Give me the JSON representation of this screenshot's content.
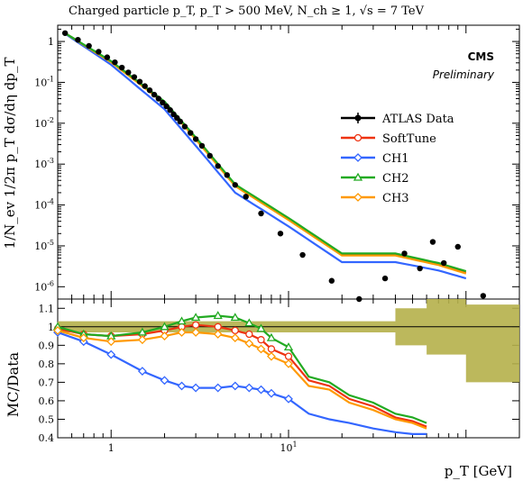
{
  "title": "Charged particle p_T, p_T > 500 MeV, N_ch ≥ 1, √s = 7 TeV",
  "experiment": "CMS",
  "experiment_note": "Preliminary",
  "top_ylabel": "1/N_ev 1/2π p_T dσ/dη dp_T",
  "bottom_ylabel": "MC/Data",
  "xlabel": "p_T  [GeV]",
  "colors": {
    "data": "#000000",
    "SoftTune": "#ee3311",
    "CH1": "#3366ff",
    "CH2": "#22aa22",
    "CH3": "#ff9900",
    "band": "#b5b04a"
  },
  "chart_data": [
    {
      "type": "line",
      "panel": "top",
      "log_x": true,
      "log_y": true,
      "xlim": [
        0.5,
        200
      ],
      "ylim": [
        5e-07,
        2.5
      ],
      "x_ticks": [
        "1",
        "10^1"
      ],
      "y_ticks": [
        "1",
        "10^-1",
        "10^-2",
        "10^-3",
        "10^-4",
        "10^-5",
        "10^-6"
      ],
      "legend_position": "right-middle",
      "series": [
        {
          "name": "ATLAS Data",
          "style": "points",
          "x": [
            0.55,
            0.65,
            0.75,
            0.85,
            0.95,
            1.05,
            1.15,
            1.25,
            1.35,
            1.45,
            1.55,
            1.65,
            1.75,
            1.85,
            1.95,
            2.05,
            2.15,
            2.25,
            2.35,
            2.45,
            2.6,
            2.8,
            3.0,
            3.25,
            3.6,
            4.0,
            4.5,
            5.0,
            5.75,
            7.0,
            9.0,
            12.0,
            17.5,
            25.0,
            35.0,
            45.0,
            55.0,
            65.0,
            75.0,
            90.0,
            125.0
          ],
          "y": [
            1.6,
            1.1,
            0.78,
            0.56,
            0.41,
            0.31,
            0.23,
            0.175,
            0.135,
            0.104,
            0.081,
            0.064,
            0.05,
            0.04,
            0.032,
            0.026,
            0.021,
            0.0165,
            0.0135,
            0.011,
            0.0083,
            0.0058,
            0.0041,
            0.0028,
            0.0016,
            0.0009,
            0.00054,
            0.00031,
            0.00016,
            6.2e-05,
            2e-05,
            6e-06,
            1.4e-06,
            5e-07,
            1.6e-06,
            6.5e-06,
            2.8e-06,
            1.25e-05,
            3.8e-06,
            9.5e-06,
            6e-07
          ]
        },
        {
          "name": "SoftTune",
          "x": [
            0.55,
            1.0,
            2.0,
            3.0,
            5.0,
            10.0,
            20.0,
            40.0,
            70.0,
            100.0
          ],
          "y": [
            1.6,
            0.32,
            0.032,
            0.0042,
            0.0003,
            4.5e-05,
            6e-06,
            6e-06,
            3.5e-06,
            2.2e-06
          ]
        },
        {
          "name": "CH1",
          "x": [
            0.55,
            1.0,
            2.0,
            3.0,
            5.0,
            10.0,
            20.0,
            40.0,
            70.0,
            100.0
          ],
          "y": [
            1.55,
            0.27,
            0.022,
            0.0028,
            0.0002,
            3e-05,
            4e-06,
            4e-06,
            2.5e-06,
            1.6e-06
          ]
        },
        {
          "name": "CH2",
          "x": [
            0.55,
            1.0,
            2.0,
            3.0,
            5.0,
            10.0,
            20.0,
            40.0,
            70.0,
            100.0
          ],
          "y": [
            1.6,
            0.33,
            0.034,
            0.0045,
            0.00032,
            4.8e-05,
            6.5e-06,
            6.5e-06,
            3.8e-06,
            2.4e-06
          ]
        },
        {
          "name": "CH3",
          "x": [
            0.55,
            1.0,
            2.0,
            3.0,
            5.0,
            10.0,
            20.0,
            40.0,
            70.0,
            100.0
          ],
          "y": [
            1.6,
            0.31,
            0.031,
            0.004,
            0.00029,
            4.3e-05,
            5.8e-06,
            5.8e-06,
            3.4e-06,
            2.1e-06
          ]
        }
      ]
    },
    {
      "type": "line",
      "panel": "bottom",
      "log_x": true,
      "xlim": [
        0.5,
        200
      ],
      "ylim": [
        0.4,
        1.15
      ],
      "y_ticks": [
        "0.4",
        "0.5",
        "0.6",
        "0.7",
        "0.8",
        "0.9",
        "1",
        "1.1"
      ],
      "band": {
        "x": [
          0.5,
          20,
          40,
          60,
          100,
          200
        ],
        "lower": [
          0.97,
          0.97,
          0.9,
          0.85,
          0.7,
          0.67
        ],
        "upper": [
          1.03,
          1.03,
          1.1,
          1.15,
          1.12,
          1.12
        ]
      },
      "series": [
        {
          "name": "SoftTune",
          "x": [
            0.5,
            0.7,
            1.0,
            1.5,
            2.0,
            2.5,
            3.0,
            4.0,
            5.0,
            6.0,
            7.0,
            8.0,
            10.0,
            13.0,
            17.0,
            22.0,
            30.0,
            40.0,
            50.0,
            60.0
          ],
          "y": [
            0.99,
            0.96,
            0.95,
            0.96,
            0.98,
            1.0,
            1.01,
            1.0,
            0.98,
            0.96,
            0.93,
            0.88,
            0.84,
            0.71,
            0.68,
            0.61,
            0.57,
            0.51,
            0.49,
            0.46
          ]
        },
        {
          "name": "CH1",
          "x": [
            0.5,
            0.7,
            1.0,
            1.5,
            2.0,
            2.5,
            3.0,
            4.0,
            5.0,
            6.0,
            7.0,
            8.0,
            10.0,
            13.0,
            17.0,
            22.0,
            30.0,
            40.0,
            50.0,
            60.0
          ],
          "y": [
            0.97,
            0.92,
            0.85,
            0.76,
            0.71,
            0.68,
            0.67,
            0.67,
            0.68,
            0.67,
            0.66,
            0.64,
            0.61,
            0.53,
            0.5,
            0.48,
            0.45,
            0.43,
            0.42,
            0.42
          ]
        },
        {
          "name": "CH2",
          "x": [
            0.5,
            0.7,
            1.0,
            1.5,
            2.0,
            2.5,
            3.0,
            4.0,
            5.0,
            6.0,
            7.0,
            8.0,
            10.0,
            13.0,
            17.0,
            22.0,
            30.0,
            40.0,
            50.0,
            60.0
          ],
          "y": [
            1.0,
            0.96,
            0.95,
            0.97,
            1.0,
            1.03,
            1.05,
            1.06,
            1.05,
            1.02,
            0.99,
            0.94,
            0.89,
            0.73,
            0.7,
            0.63,
            0.59,
            0.53,
            0.51,
            0.48
          ]
        },
        {
          "name": "CH3",
          "x": [
            0.5,
            0.7,
            1.0,
            1.5,
            2.0,
            2.5,
            3.0,
            4.0,
            5.0,
            6.0,
            7.0,
            8.0,
            10.0,
            13.0,
            17.0,
            22.0,
            30.0,
            40.0,
            50.0,
            60.0
          ],
          "y": [
            0.98,
            0.94,
            0.92,
            0.93,
            0.95,
            0.97,
            0.97,
            0.96,
            0.94,
            0.91,
            0.88,
            0.84,
            0.8,
            0.68,
            0.66,
            0.59,
            0.55,
            0.5,
            0.48,
            0.45
          ]
        }
      ]
    }
  ]
}
